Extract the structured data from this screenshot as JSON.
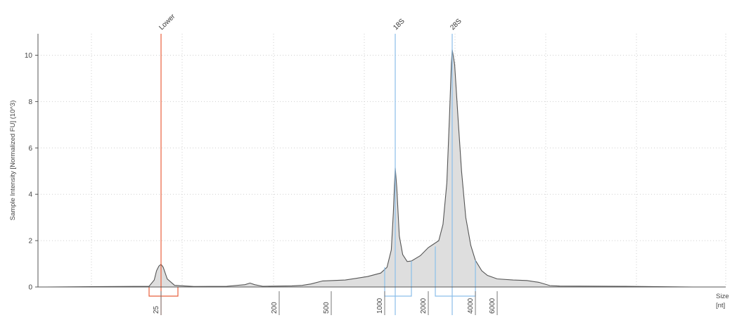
{
  "chart_data": {
    "type": "area",
    "title": "",
    "xlabel_line1": "Size",
    "xlabel_line2": "[nt]",
    "ylabel": "Sample Intensity [Normalized FU] (10^3)",
    "ylim": [
      0,
      11
    ],
    "yticks": [
      0,
      2,
      4,
      6,
      8,
      10
    ],
    "xticks": [
      {
        "label": "25",
        "value": 25
      },
      {
        "label": "200",
        "value": 200
      },
      {
        "label": "500",
        "value": 500
      },
      {
        "label": "1000",
        "value": 1000
      },
      {
        "label": "2000",
        "value": 2000
      },
      {
        "label": "4000",
        "value": 4000
      },
      {
        "label": "6000",
        "value": 6000
      }
    ],
    "markers": [
      {
        "name": "Lower",
        "value": 25,
        "color": "#e8603c"
      },
      {
        "name": "18S",
        "value": 1250,
        "color": "#8cbfea"
      },
      {
        "name": "28S",
        "value": 2900,
        "color": "#8cbfea"
      }
    ],
    "regions": [
      {
        "name": "Lower",
        "from": 20,
        "to": 34,
        "color": "#e8603c"
      },
      {
        "name": "18S",
        "from": 1000,
        "to": 1600,
        "color": "#8cbfea"
      },
      {
        "name": "28S",
        "from": 2050,
        "to": 4000,
        "color": "#8cbfea"
      }
    ],
    "grid": true,
    "series": [
      {
        "fill": "#dedede",
        "stroke": "#555555",
        "points": [
          [
            0.2,
            0.0
          ],
          [
            20.0,
            0.03
          ],
          [
            22.0,
            0.3
          ],
          [
            23.0,
            0.7
          ],
          [
            24.0,
            0.9
          ],
          [
            25.0,
            0.98
          ],
          [
            26.0,
            0.85
          ],
          [
            28.0,
            0.35
          ],
          [
            32.0,
            0.07
          ],
          [
            45.0,
            0.02
          ],
          [
            80.0,
            0.03
          ],
          [
            110.0,
            0.1
          ],
          [
            120.0,
            0.17
          ],
          [
            130.0,
            0.1
          ],
          [
            150.0,
            0.03
          ],
          [
            250.0,
            0.05
          ],
          [
            300.0,
            0.07
          ],
          [
            350.0,
            0.13
          ],
          [
            430.0,
            0.26
          ],
          [
            600.0,
            0.3
          ],
          [
            800.0,
            0.45
          ],
          [
            950.0,
            0.6
          ],
          [
            1050.0,
            0.85
          ],
          [
            1150.0,
            1.6
          ],
          [
            1200.0,
            3.2
          ],
          [
            1250.0,
            5.15
          ],
          [
            1280.0,
            4.3
          ],
          [
            1330.0,
            2.2
          ],
          [
            1400.0,
            1.4
          ],
          [
            1500.0,
            1.1
          ],
          [
            1600.0,
            1.12
          ],
          [
            1800.0,
            1.35
          ],
          [
            2000.0,
            1.7
          ],
          [
            2200.0,
            2.0
          ],
          [
            2400.0,
            2.7
          ],
          [
            2600.0,
            4.5
          ],
          [
            2750.0,
            7.5
          ],
          [
            2850.0,
            9.6
          ],
          [
            2900.0,
            10.25
          ],
          [
            3000.0,
            9.6
          ],
          [
            3150.0,
            7.2
          ],
          [
            3300.0,
            5.0
          ],
          [
            3500.0,
            3.0
          ],
          [
            3750.0,
            1.8
          ],
          [
            4000.0,
            1.15
          ],
          [
            4500.0,
            0.7
          ],
          [
            5000.0,
            0.5
          ],
          [
            6000.0,
            0.35
          ],
          [
            7000.0,
            0.3
          ],
          [
            8000.0,
            0.28
          ],
          [
            9000.0,
            0.2
          ],
          [
            10000.0,
            0.06
          ],
          [
            11000.0,
            0.04
          ],
          [
            20000.0,
            0.03
          ],
          [
            40000.0,
            0.0
          ]
        ]
      }
    ]
  }
}
